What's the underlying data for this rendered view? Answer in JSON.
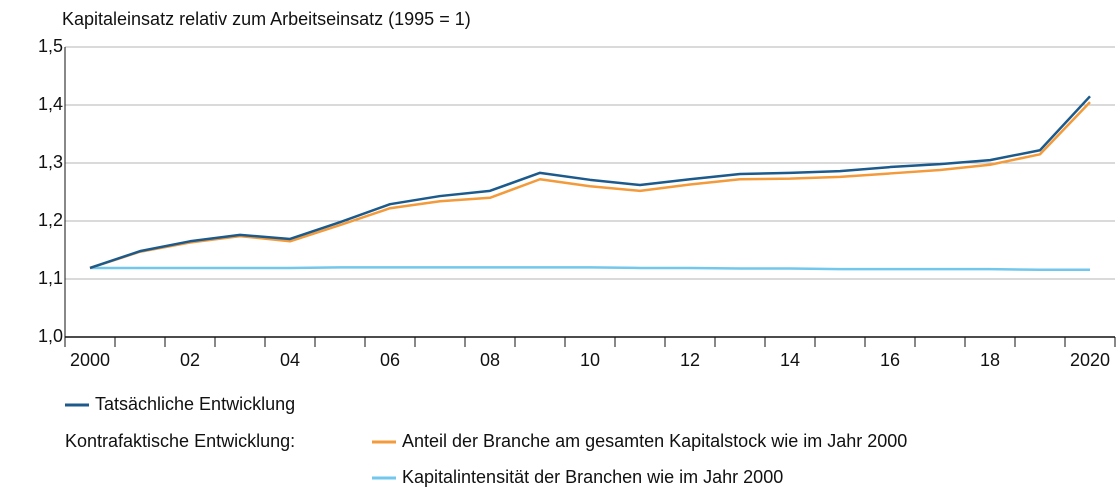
{
  "chart_data": {
    "type": "line",
    "title": "Kapitaleinsatz relativ zum Arbeitseinsatz (1995 = 1)",
    "categories": [
      "2000",
      null,
      "02",
      null,
      "04",
      null,
      "06",
      null,
      "08",
      null,
      "10",
      null,
      "12",
      null,
      "14",
      null,
      "16",
      null,
      "18",
      null,
      "2020"
    ],
    "series": [
      {
        "name": "Tatsächliche Entwicklung",
        "color": "#1c5a8c",
        "values": [
          1.119,
          1.148,
          1.165,
          1.176,
          1.169,
          1.198,
          1.229,
          1.243,
          1.252,
          1.283,
          1.271,
          1.262,
          1.272,
          1.281,
          1.283,
          1.286,
          1.293,
          1.298,
          1.305,
          1.322,
          1.415
        ]
      },
      {
        "name": "Anteil der Branche am gesamten Kapitalstock wie im Jahr 2000",
        "color": "#f39a3b",
        "values": [
          1.119,
          1.147,
          1.163,
          1.174,
          1.165,
          1.193,
          1.222,
          1.234,
          1.24,
          1.272,
          1.26,
          1.252,
          1.263,
          1.272,
          1.273,
          1.276,
          1.282,
          1.288,
          1.297,
          1.315,
          1.405
        ]
      },
      {
        "name": "Kapitalintensität der Branchen wie im Jahr 2000",
        "color": "#72c7ec",
        "values": [
          1.119,
          1.119,
          1.119,
          1.119,
          1.119,
          1.12,
          1.12,
          1.12,
          1.12,
          1.12,
          1.12,
          1.119,
          1.119,
          1.118,
          1.118,
          1.117,
          1.117,
          1.117,
          1.117,
          1.116,
          1.116
        ]
      }
    ],
    "legend_group_label": "Kontrafaktische Entwicklung:",
    "ylim": [
      1.0,
      1.5
    ],
    "yticks": [
      {
        "value": 1.0,
        "label": "1,0"
      },
      {
        "value": 1.1,
        "label": "1,1"
      },
      {
        "value": 1.2,
        "label": "1,2"
      },
      {
        "value": 1.3,
        "label": "1,3"
      },
      {
        "value": 1.4,
        "label": "1,4"
      },
      {
        "value": 1.5,
        "label": "1,5"
      }
    ],
    "grid": true
  }
}
